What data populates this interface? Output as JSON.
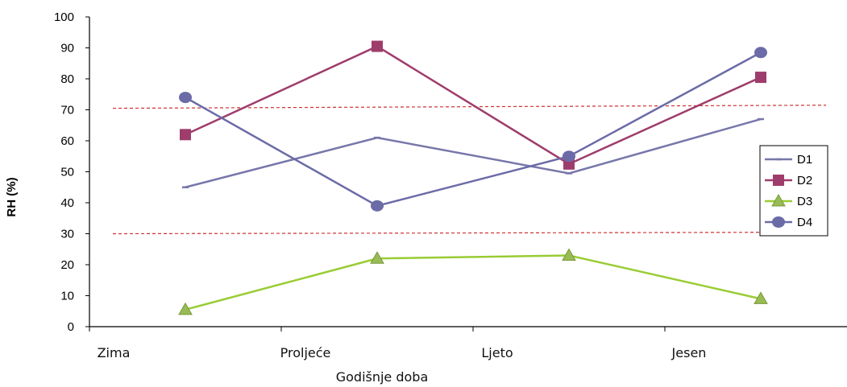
{
  "chart_data": {
    "type": "line",
    "categories": [
      "Zima",
      "Proljeće",
      "Ljeto",
      "Jesen"
    ],
    "xlabel": "Godišnje doba",
    "ylabel": "RH (%)",
    "ylim": [
      0,
      100
    ],
    "yticks": [
      0,
      10,
      20,
      30,
      40,
      50,
      60,
      70,
      80,
      90,
      100
    ],
    "grid": false,
    "legend_position": "right",
    "series": [
      {
        "name": "D1",
        "color": "#7777aa",
        "marker": "dash",
        "values": [
          45,
          61,
          49.5,
          67
        ]
      },
      {
        "name": "D2",
        "color": "#9e3d6b",
        "marker": "square",
        "values": [
          62,
          90.5,
          52.5,
          80.5
        ]
      },
      {
        "name": "D3",
        "color": "#99cc33",
        "marker": "triangle",
        "values": [
          5.5,
          22,
          23,
          9
        ]
      },
      {
        "name": "D4",
        "color": "#6b6ba8",
        "marker": "circle",
        "values": [
          74,
          39,
          55,
          88.5
        ]
      }
    ],
    "reference_lines": [
      {
        "from": 70.5,
        "to": 71.5,
        "color": "#cc3333",
        "style": "dashed"
      },
      {
        "from": 30,
        "to": 30.5,
        "color": "#cc3333",
        "style": "dashed"
      }
    ]
  }
}
